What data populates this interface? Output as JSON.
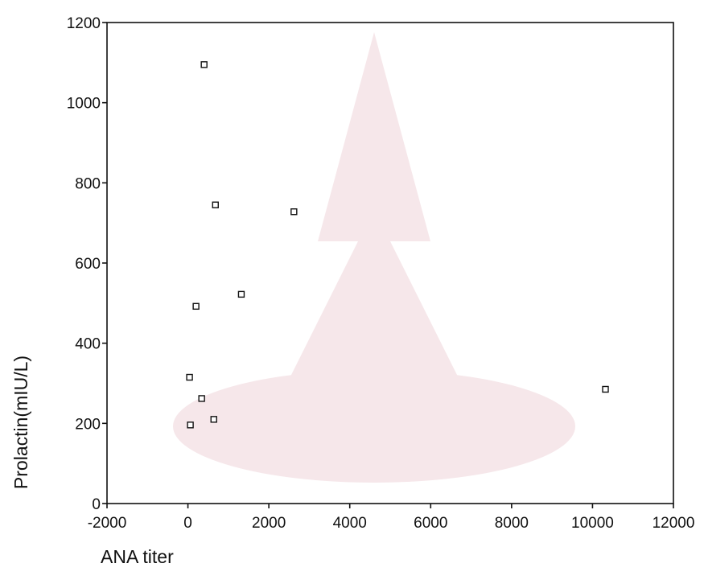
{
  "colors": {
    "axis": "#111111",
    "marker_stroke": "#111111",
    "watermark": "#f6e7ea"
  },
  "watermark": {
    "icon": "chulalongkorn-crest-watermark"
  },
  "chart_data": {
    "type": "scatter",
    "title": "",
    "xlabel": "ANA titer",
    "ylabel": "Prolactin(mIU/L)",
    "xlim": [
      -2000,
      12000
    ],
    "ylim": [
      0,
      1200
    ],
    "xticks": [
      -2000,
      0,
      2000,
      4000,
      6000,
      8000,
      10000,
      12000
    ],
    "yticks": [
      0,
      200,
      400,
      600,
      800,
      1000,
      1200
    ],
    "xtick_labels": [
      "-2000",
      "0",
      "2000",
      "4000",
      "6000",
      "8000",
      "10000",
      "12000"
    ],
    "ytick_labels": [
      "0",
      "200",
      "400",
      "600",
      "800",
      "1000",
      "1200"
    ],
    "grid": false,
    "marker": "open-square",
    "points": [
      {
        "x": 400,
        "y": 1095
      },
      {
        "x": 680,
        "y": 745
      },
      {
        "x": 2620,
        "y": 728
      },
      {
        "x": 1320,
        "y": 522
      },
      {
        "x": 200,
        "y": 492
      },
      {
        "x": 40,
        "y": 315
      },
      {
        "x": 340,
        "y": 262
      },
      {
        "x": 640,
        "y": 210
      },
      {
        "x": 60,
        "y": 196
      },
      {
        "x": 10320,
        "y": 285
      }
    ]
  }
}
